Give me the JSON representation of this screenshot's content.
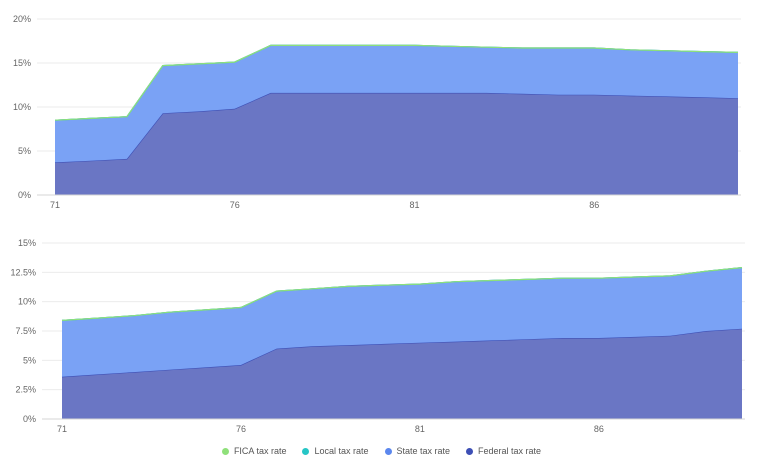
{
  "chart_data": [
    {
      "type": "area",
      "stacked": true,
      "x": [
        71,
        72,
        73,
        74,
        75,
        76,
        77,
        78,
        79,
        80,
        81,
        82,
        83,
        84,
        85,
        86,
        87,
        88,
        89,
        90
      ],
      "x_ticks": [
        "71",
        "76",
        "81",
        "86"
      ],
      "y_ticks": [
        "0%",
        "5%",
        "10%",
        "15%",
        "20%"
      ],
      "ylim": [
        0,
        20
      ],
      "grid": true,
      "series": [
        {
          "name": "Federal tax rate",
          "color": "#6a76c4",
          "stroke": "#3d4fb5",
          "values": [
            3.7,
            3.9,
            4.1,
            9.3,
            9.5,
            9.8,
            11.6,
            11.6,
            11.6,
            11.6,
            11.6,
            11.6,
            11.6,
            11.5,
            11.4,
            11.4,
            11.3,
            11.2,
            11.1,
            11.0
          ]
        },
        {
          "name": "State tax rate",
          "color": "#7aa2f5",
          "stroke": "#5b87ee",
          "values": [
            4.8,
            4.8,
            4.8,
            5.4,
            5.4,
            5.3,
            5.4,
            5.4,
            5.4,
            5.4,
            5.4,
            5.3,
            5.2,
            5.2,
            5.3,
            5.3,
            5.2,
            5.2,
            5.2,
            5.2
          ]
        },
        {
          "name": "Local tax rate",
          "color": "#26c6c6",
          "stroke": "#26c6c6",
          "values": [
            0,
            0,
            0,
            0,
            0,
            0,
            0,
            0,
            0,
            0,
            0,
            0,
            0,
            0,
            0,
            0,
            0,
            0,
            0,
            0
          ]
        },
        {
          "name": "FICA tax rate",
          "color": "#8fe07a",
          "stroke": "#8fe07a",
          "values": [
            0,
            0,
            0,
            0,
            0,
            0,
            0,
            0,
            0,
            0,
            0,
            0,
            0,
            0,
            0,
            0,
            0,
            0,
            0,
            0
          ]
        }
      ]
    },
    {
      "type": "area",
      "stacked": true,
      "x": [
        71,
        72,
        73,
        74,
        75,
        76,
        77,
        78,
        79,
        80,
        81,
        82,
        83,
        84,
        85,
        86,
        87,
        88,
        89,
        90
      ],
      "x_ticks": [
        "71",
        "76",
        "81",
        "86"
      ],
      "y_ticks": [
        "0%",
        "2.5%",
        "5%",
        "7.5%",
        "10%",
        "12.5%",
        "15%"
      ],
      "ylim": [
        0,
        15
      ],
      "grid": true,
      "series": [
        {
          "name": "Federal tax rate",
          "color": "#6a76c4",
          "stroke": "#3d4fb5",
          "values": [
            3.6,
            3.8,
            4.0,
            4.2,
            4.4,
            4.6,
            6.0,
            6.2,
            6.3,
            6.4,
            6.5,
            6.6,
            6.7,
            6.8,
            6.9,
            6.9,
            7.0,
            7.1,
            7.5,
            7.7
          ]
        },
        {
          "name": "State tax rate",
          "color": "#7aa2f5",
          "stroke": "#5b87ee",
          "values": [
            4.8,
            4.8,
            4.8,
            4.9,
            4.9,
            4.9,
            4.9,
            4.9,
            5.0,
            5.0,
            5.0,
            5.1,
            5.1,
            5.1,
            5.1,
            5.1,
            5.1,
            5.1,
            5.1,
            5.2
          ]
        },
        {
          "name": "Local tax rate",
          "color": "#26c6c6",
          "stroke": "#26c6c6",
          "values": [
            0,
            0,
            0,
            0,
            0,
            0,
            0,
            0,
            0,
            0,
            0,
            0,
            0,
            0,
            0,
            0,
            0,
            0,
            0,
            0
          ]
        },
        {
          "name": "FICA tax rate",
          "color": "#8fe07a",
          "stroke": "#8fe07a",
          "values": [
            0,
            0,
            0,
            0,
            0,
            0,
            0,
            0,
            0,
            0,
            0,
            0,
            0,
            0,
            0,
            0,
            0,
            0,
            0,
            0
          ]
        }
      ]
    }
  ],
  "legend": {
    "placement": "bottom-center",
    "items": [
      {
        "label": "FICA tax rate",
        "color": "#8fe07a"
      },
      {
        "label": "Local tax rate",
        "color": "#26c6c6"
      },
      {
        "label": "State tax rate",
        "color": "#5b87ee"
      },
      {
        "label": "Federal tax rate",
        "color": "#3d4fb5"
      }
    ]
  }
}
